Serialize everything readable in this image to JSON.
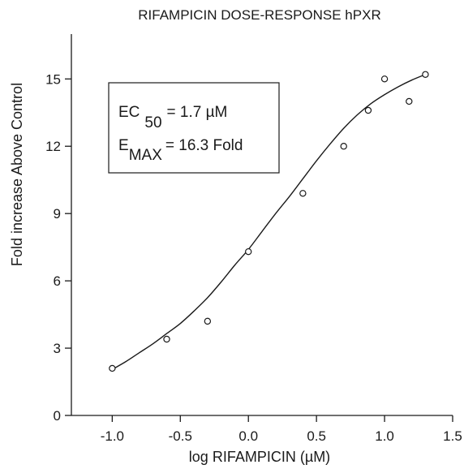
{
  "chart_data": {
    "type": "scatter",
    "title": "RIFAMPICIN DOSE-RESPONSE hPXR",
    "xlabel": "log RIFAMPICIN (µM)",
    "ylabel": "Fold increase Above Control",
    "xlim": [
      -1.3,
      1.5
    ],
    "ylim": [
      0,
      17
    ],
    "x_ticks": [
      -1.0,
      -0.5,
      0.0,
      0.5,
      1.0,
      1.5
    ],
    "x_tick_labels": [
      "-1.0",
      "-0.5",
      "0.0",
      "0.5",
      "1.0",
      "1.5"
    ],
    "y_ticks": [
      0,
      3,
      6,
      9,
      12,
      15
    ],
    "y_tick_labels": [
      "0",
      "3",
      "6",
      "9",
      "12",
      "15"
    ],
    "grid": false,
    "series": [
      {
        "type": "scatter",
        "marker": "open-circle",
        "x": [
          -1.0,
          -0.6,
          -0.3,
          0.0,
          0.4,
          0.7,
          0.88,
          1.0,
          1.18,
          1.3
        ],
        "y": [
          2.1,
          3.4,
          4.2,
          7.3,
          9.9,
          12.0,
          13.6,
          15.0,
          14.0,
          15.2
        ]
      },
      {
        "type": "line",
        "fit": "sigmoid",
        "x": [
          -1.0,
          -0.9,
          -0.8,
          -0.7,
          -0.6,
          -0.5,
          -0.4,
          -0.3,
          -0.2,
          -0.1,
          0.0,
          0.1,
          0.2,
          0.3,
          0.4,
          0.5,
          0.6,
          0.7,
          0.8,
          0.9,
          1.0,
          1.1,
          1.2,
          1.3
        ],
        "y": [
          2.05,
          2.4,
          2.8,
          3.2,
          3.65,
          4.1,
          4.65,
          5.25,
          5.95,
          6.7,
          7.4,
          8.2,
          9.0,
          9.75,
          10.55,
          11.35,
          12.1,
          12.8,
          13.4,
          13.9,
          14.3,
          14.65,
          14.95,
          15.2
        ]
      }
    ],
    "annotation": {
      "ec50_main": "EC",
      "ec50_sub": "50",
      "ec50_value": "= 1.7 µM",
      "emax_main": "E",
      "emax_sub": "MAX",
      "emax_value": "= 16.3 Fold"
    }
  },
  "colors": {
    "ink": "#1a1a1a",
    "background": "#ffffff"
  }
}
